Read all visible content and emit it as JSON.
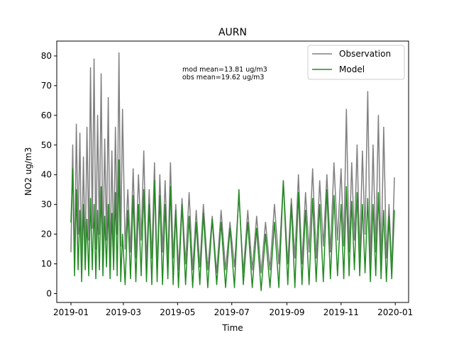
{
  "chart_data": {
    "type": "line",
    "title": "AURN",
    "xlabel": "Time",
    "ylabel": "NO2 ug/m3",
    "xlim": [
      "2018-12-16",
      "2020-01-16"
    ],
    "ylim": [
      -3,
      85
    ],
    "x_ticks": [
      "2019-01",
      "2019-03",
      "2019-05",
      "2019-07",
      "2019-09",
      "2019-11",
      "2020-01"
    ],
    "y_ticks": [
      0,
      10,
      20,
      30,
      40,
      50,
      60,
      70,
      80
    ],
    "grid": false,
    "legend_position": "top-right",
    "annotations": [
      "mod mean=13.81 ug/m3",
      "obs mean=19.62 ug/m3"
    ],
    "series": [
      {
        "name": "Observation",
        "color": "#808080",
        "points": [
          [
            "2019-01-01",
            14
          ],
          [
            "2019-01-03",
            50
          ],
          [
            "2019-01-05",
            8
          ],
          [
            "2019-01-07",
            57
          ],
          [
            "2019-01-09",
            20
          ],
          [
            "2019-01-11",
            54
          ],
          [
            "2019-01-13",
            10
          ],
          [
            "2019-01-15",
            46
          ],
          [
            "2019-01-17",
            12
          ],
          [
            "2019-01-19",
            56
          ],
          [
            "2019-01-21",
            18
          ],
          [
            "2019-01-23",
            76
          ],
          [
            "2019-01-25",
            22
          ],
          [
            "2019-01-27",
            79
          ],
          [
            "2019-01-29",
            15
          ],
          [
            "2019-01-31",
            60
          ],
          [
            "2019-02-02",
            20
          ],
          [
            "2019-02-04",
            74
          ],
          [
            "2019-02-06",
            12
          ],
          [
            "2019-02-08",
            52
          ],
          [
            "2019-02-10",
            18
          ],
          [
            "2019-02-12",
            66
          ],
          [
            "2019-02-14",
            10
          ],
          [
            "2019-02-16",
            48
          ],
          [
            "2019-02-18",
            14
          ],
          [
            "2019-02-20",
            56
          ],
          [
            "2019-02-22",
            20
          ],
          [
            "2019-02-24",
            81
          ],
          [
            "2019-02-26",
            16
          ],
          [
            "2019-02-28",
            62
          ],
          [
            "2019-03-03",
            15
          ],
          [
            "2019-03-06",
            35
          ],
          [
            "2019-03-09",
            14
          ],
          [
            "2019-03-12",
            42
          ],
          [
            "2019-03-15",
            12
          ],
          [
            "2019-03-18",
            40
          ],
          [
            "2019-03-21",
            18
          ],
          [
            "2019-03-24",
            48
          ],
          [
            "2019-03-27",
            10
          ],
          [
            "2019-03-30",
            35
          ],
          [
            "2019-04-02",
            12
          ],
          [
            "2019-04-05",
            44
          ],
          [
            "2019-04-08",
            8
          ],
          [
            "2019-04-11",
            40
          ],
          [
            "2019-04-14",
            14
          ],
          [
            "2019-04-17",
            38
          ],
          [
            "2019-04-20",
            10
          ],
          [
            "2019-04-23",
            44
          ],
          [
            "2019-04-26",
            12
          ],
          [
            "2019-04-29",
            30
          ],
          [
            "2019-05-02",
            8
          ],
          [
            "2019-05-06",
            32
          ],
          [
            "2019-05-10",
            10
          ],
          [
            "2019-05-14",
            34
          ],
          [
            "2019-05-18",
            8
          ],
          [
            "2019-05-22",
            28
          ],
          [
            "2019-05-26",
            9
          ],
          [
            "2019-05-30",
            30
          ],
          [
            "2019-06-04",
            8
          ],
          [
            "2019-06-09",
            26
          ],
          [
            "2019-06-14",
            7
          ],
          [
            "2019-06-19",
            28
          ],
          [
            "2019-06-24",
            8
          ],
          [
            "2019-06-29",
            24
          ],
          [
            "2019-07-04",
            9
          ],
          [
            "2019-07-09",
            33
          ],
          [
            "2019-07-14",
            7
          ],
          [
            "2019-07-19",
            28
          ],
          [
            "2019-07-24",
            8
          ],
          [
            "2019-07-29",
            26
          ],
          [
            "2019-08-03",
            7
          ],
          [
            "2019-08-08",
            24
          ],
          [
            "2019-08-13",
            8
          ],
          [
            "2019-08-18",
            30
          ],
          [
            "2019-08-23",
            10
          ],
          [
            "2019-08-28",
            38
          ],
          [
            "2019-09-02",
            10
          ],
          [
            "2019-09-06",
            32
          ],
          [
            "2019-09-10",
            12
          ],
          [
            "2019-09-14",
            40
          ],
          [
            "2019-09-18",
            10
          ],
          [
            "2019-09-22",
            34
          ],
          [
            "2019-09-26",
            14
          ],
          [
            "2019-09-30",
            42
          ],
          [
            "2019-10-04",
            12
          ],
          [
            "2019-10-08",
            38
          ],
          [
            "2019-10-12",
            16
          ],
          [
            "2019-10-16",
            40
          ],
          [
            "2019-10-20",
            14
          ],
          [
            "2019-10-24",
            44
          ],
          [
            "2019-10-28",
            18
          ],
          [
            "2019-11-01",
            42
          ],
          [
            "2019-11-04",
            16
          ],
          [
            "2019-11-07",
            62
          ],
          [
            "2019-11-10",
            14
          ],
          [
            "2019-11-13",
            44
          ],
          [
            "2019-11-16",
            18
          ],
          [
            "2019-11-19",
            50
          ],
          [
            "2019-11-22",
            12
          ],
          [
            "2019-11-25",
            48
          ],
          [
            "2019-11-28",
            20
          ],
          [
            "2019-12-01",
            68
          ],
          [
            "2019-12-04",
            10
          ],
          [
            "2019-12-07",
            50
          ],
          [
            "2019-12-10",
            14
          ],
          [
            "2019-12-13",
            60
          ],
          [
            "2019-12-16",
            10
          ],
          [
            "2019-12-19",
            56
          ],
          [
            "2019-12-22",
            12
          ],
          [
            "2019-12-25",
            30
          ],
          [
            "2019-12-28",
            8
          ],
          [
            "2019-12-31",
            39
          ]
        ]
      },
      {
        "name": "Model",
        "color": "#228b22",
        "points": [
          [
            "2019-01-01",
            24
          ],
          [
            "2019-01-03",
            42
          ],
          [
            "2019-01-05",
            6
          ],
          [
            "2019-01-07",
            35
          ],
          [
            "2019-01-09",
            8
          ],
          [
            "2019-01-11",
            28
          ],
          [
            "2019-01-13",
            4
          ],
          [
            "2019-01-15",
            30
          ],
          [
            "2019-01-17",
            8
          ],
          [
            "2019-01-19",
            25
          ],
          [
            "2019-01-21",
            6
          ],
          [
            "2019-01-23",
            32
          ],
          [
            "2019-01-25",
            8
          ],
          [
            "2019-01-27",
            30
          ],
          [
            "2019-01-29",
            5
          ],
          [
            "2019-01-31",
            28
          ],
          [
            "2019-02-02",
            8
          ],
          [
            "2019-02-04",
            36
          ],
          [
            "2019-02-06",
            6
          ],
          [
            "2019-02-08",
            26
          ],
          [
            "2019-02-10",
            9
          ],
          [
            "2019-02-12",
            30
          ],
          [
            "2019-02-14",
            5
          ],
          [
            "2019-02-16",
            27
          ],
          [
            "2019-02-18",
            8
          ],
          [
            "2019-02-20",
            34
          ],
          [
            "2019-02-22",
            6
          ],
          [
            "2019-02-24",
            45
          ],
          [
            "2019-02-26",
            4
          ],
          [
            "2019-02-28",
            20
          ],
          [
            "2019-03-03",
            3
          ],
          [
            "2019-03-06",
            28
          ],
          [
            "2019-03-09",
            5
          ],
          [
            "2019-03-12",
            33
          ],
          [
            "2019-03-15",
            4
          ],
          [
            "2019-03-18",
            30
          ],
          [
            "2019-03-21",
            6
          ],
          [
            "2019-03-24",
            35
          ],
          [
            "2019-03-27",
            4
          ],
          [
            "2019-03-30",
            30
          ],
          [
            "2019-04-02",
            3
          ],
          [
            "2019-04-05",
            38
          ],
          [
            "2019-04-08",
            4
          ],
          [
            "2019-04-11",
            33
          ],
          [
            "2019-04-14",
            3
          ],
          [
            "2019-04-17",
            30
          ],
          [
            "2019-04-20",
            5
          ],
          [
            "2019-04-23",
            36
          ],
          [
            "2019-04-26",
            3
          ],
          [
            "2019-04-29",
            28
          ],
          [
            "2019-05-02",
            2
          ],
          [
            "2019-05-06",
            30
          ],
          [
            "2019-05-10",
            3
          ],
          [
            "2019-05-14",
            26
          ],
          [
            "2019-05-18",
            2
          ],
          [
            "2019-05-22",
            24
          ],
          [
            "2019-05-26",
            3
          ],
          [
            "2019-05-30",
            27
          ],
          [
            "2019-06-04",
            2
          ],
          [
            "2019-06-09",
            25
          ],
          [
            "2019-06-14",
            3
          ],
          [
            "2019-06-19",
            24
          ],
          [
            "2019-06-24",
            2
          ],
          [
            "2019-06-29",
            22
          ],
          [
            "2019-07-04",
            2
          ],
          [
            "2019-07-09",
            35
          ],
          [
            "2019-07-14",
            3
          ],
          [
            "2019-07-19",
            24
          ],
          [
            "2019-07-24",
            2
          ],
          [
            "2019-07-29",
            22
          ],
          [
            "2019-08-03",
            1
          ],
          [
            "2019-08-08",
            20
          ],
          [
            "2019-08-13",
            2
          ],
          [
            "2019-08-18",
            24
          ],
          [
            "2019-08-23",
            2
          ],
          [
            "2019-08-28",
            38
          ],
          [
            "2019-09-02",
            3
          ],
          [
            "2019-09-06",
            30
          ],
          [
            "2019-09-10",
            2
          ],
          [
            "2019-09-14",
            34
          ],
          [
            "2019-09-18",
            3
          ],
          [
            "2019-09-22",
            28
          ],
          [
            "2019-09-26",
            3
          ],
          [
            "2019-09-30",
            32
          ],
          [
            "2019-10-04",
            4
          ],
          [
            "2019-10-08",
            30
          ],
          [
            "2019-10-12",
            4
          ],
          [
            "2019-10-16",
            35
          ],
          [
            "2019-10-20",
            5
          ],
          [
            "2019-10-24",
            33
          ],
          [
            "2019-10-28",
            6
          ],
          [
            "2019-11-01",
            30
          ],
          [
            "2019-11-04",
            5
          ],
          [
            "2019-11-07",
            36
          ],
          [
            "2019-11-10",
            6
          ],
          [
            "2019-11-13",
            31
          ],
          [
            "2019-11-16",
            8
          ],
          [
            "2019-11-19",
            34
          ],
          [
            "2019-11-22",
            6
          ],
          [
            "2019-11-25",
            30
          ],
          [
            "2019-11-28",
            7
          ],
          [
            "2019-12-01",
            32
          ],
          [
            "2019-12-04",
            4
          ],
          [
            "2019-12-07",
            30
          ],
          [
            "2019-12-10",
            6
          ],
          [
            "2019-12-13",
            34
          ],
          [
            "2019-12-16",
            5
          ],
          [
            "2019-12-19",
            28
          ],
          [
            "2019-12-22",
            4
          ],
          [
            "2019-12-25",
            26
          ],
          [
            "2019-12-28",
            5
          ],
          [
            "2019-12-31",
            28
          ]
        ]
      }
    ]
  }
}
